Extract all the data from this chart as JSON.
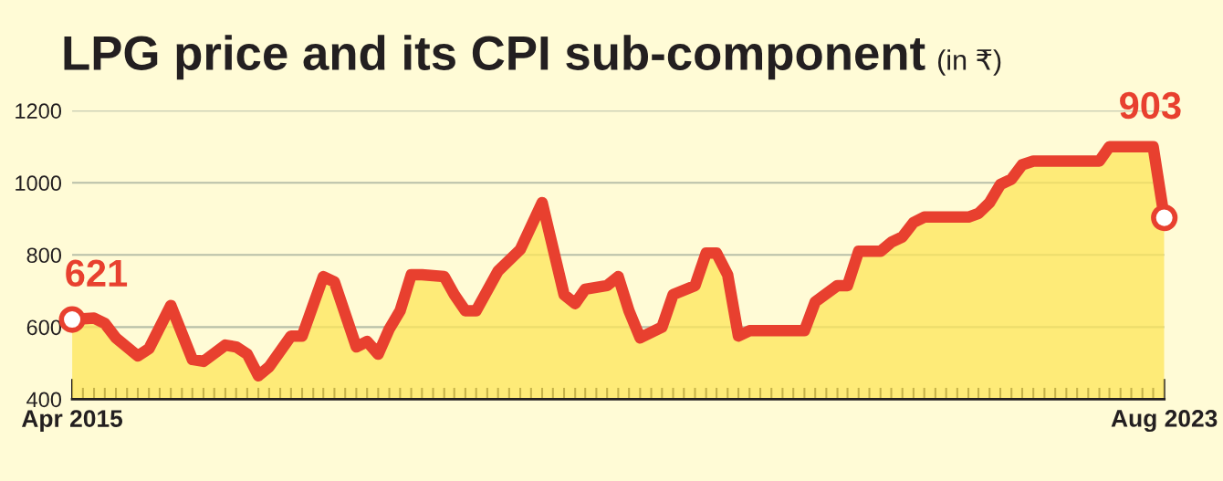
{
  "chart_data": {
    "type": "area",
    "title": "LPG price and its CPI sub-component",
    "subtitle": "(in ₹)",
    "x": [
      "2015-04",
      "2015-06",
      "2015-07",
      "2015-08",
      "2015-10",
      "2015-11",
      "2016-01",
      "2016-03",
      "2016-04",
      "2016-06",
      "2016-07",
      "2016-08",
      "2016-09",
      "2016-10",
      "2016-12",
      "2017-01",
      "2017-03",
      "2017-04",
      "2017-06",
      "2017-07",
      "2017-08",
      "2017-09",
      "2017-10",
      "2017-11",
      "2017-12",
      "2018-02",
      "2018-03",
      "2018-04",
      "2018-05",
      "2018-07",
      "2018-09",
      "2018-11",
      "2019-01",
      "2019-02",
      "2019-03",
      "2019-05",
      "2019-06",
      "2019-07",
      "2019-08",
      "2019-10",
      "2019-11",
      "2020-01",
      "2020-02",
      "2020-03",
      "2020-04",
      "2020-05",
      "2020-06",
      "2020-11",
      "2020-12",
      "2021-02",
      "2021-03",
      "2021-04",
      "2021-06",
      "2021-07",
      "2021-08",
      "2021-09",
      "2021-10",
      "2022-02",
      "2022-03",
      "2022-04",
      "2022-05",
      "2022-06",
      "2022-07",
      "2022-08",
      "2023-02",
      "2023-03",
      "2023-07",
      "2023-08"
    ],
    "series": [
      {
        "color": "#e8402f",
        "values": [
          621,
          625,
          610,
          570,
          520,
          540,
          660,
          510,
          505,
          550,
          545,
          525,
          465,
          490,
          575,
          575,
          740,
          725,
          545,
          560,
          525,
          595,
          645,
          745,
          745,
          740,
          690,
          645,
          645,
          755,
          815,
          945,
          690,
          665,
          705,
          715,
          740,
          645,
          570,
          600,
          690,
          715,
          805,
          805,
          745,
          575,
          590,
          590,
          670,
          715,
          715,
          810,
          810,
          835,
          850,
          890,
          905,
          905,
          915,
          945,
          995,
          1010,
          1050,
          1060,
          1060,
          1100,
          1100,
          903
        ]
      }
    ],
    "ylim": [
      400,
      1200
    ],
    "yticks": [
      400,
      600,
      800,
      1000,
      1200
    ],
    "xlim": [
      "2015-04",
      "2023-08"
    ],
    "xticks": [
      {
        "value": "2015-04",
        "label": "Apr 2015"
      },
      {
        "value": "2015-05",
        "label": null
      },
      {
        "value": "2015-06",
        "label": null
      },
      {
        "value": "2015-07",
        "label": null
      },
      {
        "value": "2015-08",
        "label": null
      },
      {
        "value": "2015-09",
        "label": null
      },
      {
        "value": "2015-10",
        "label": null
      },
      {
        "value": "2015-11",
        "label": null
      },
      {
        "value": "2015-12",
        "label": null
      },
      {
        "value": "2016-01",
        "label": null
      },
      {
        "value": "2016-02",
        "label": null
      },
      {
        "value": "2016-03",
        "label": null
      },
      {
        "value": "2016-04",
        "label": null
      },
      {
        "value": "2016-05",
        "label": null
      },
      {
        "value": "2016-06",
        "label": null
      },
      {
        "value": "2016-07",
        "label": null
      },
      {
        "value": "2016-08",
        "label": null
      },
      {
        "value": "2016-09",
        "label": null
      },
      {
        "value": "2016-10",
        "label": null
      },
      {
        "value": "2016-11",
        "label": null
      },
      {
        "value": "2016-12",
        "label": null
      },
      {
        "value": "2017-01",
        "label": null
      },
      {
        "value": "2017-02",
        "label": null
      },
      {
        "value": "2017-03",
        "label": null
      },
      {
        "value": "2017-04",
        "label": null
      },
      {
        "value": "2017-05",
        "label": null
      },
      {
        "value": "2017-06",
        "label": null
      },
      {
        "value": "2017-07",
        "label": null
      },
      {
        "value": "2017-08",
        "label": null
      },
      {
        "value": "2017-09",
        "label": null
      },
      {
        "value": "2017-10",
        "label": null
      },
      {
        "value": "2017-11",
        "label": null
      },
      {
        "value": "2017-12",
        "label": null
      },
      {
        "value": "2018-01",
        "label": null
      },
      {
        "value": "2018-02",
        "label": null
      },
      {
        "value": "2018-03",
        "label": null
      },
      {
        "value": "2018-04",
        "label": null
      },
      {
        "value": "2018-05",
        "label": null
      },
      {
        "value": "2018-06",
        "label": null
      },
      {
        "value": "2018-07",
        "label": null
      },
      {
        "value": "2018-08",
        "label": null
      },
      {
        "value": "2018-09",
        "label": null
      },
      {
        "value": "2018-10",
        "label": null
      },
      {
        "value": "2018-11",
        "label": null
      },
      {
        "value": "2018-12",
        "label": null
      },
      {
        "value": "2019-01",
        "label": null
      },
      {
        "value": "2019-02",
        "label": null
      },
      {
        "value": "2019-03",
        "label": null
      },
      {
        "value": "2019-04",
        "label": null
      },
      {
        "value": "2019-05",
        "label": null
      },
      {
        "value": "2019-06",
        "label": null
      },
      {
        "value": "2019-07",
        "label": null
      },
      {
        "value": "2019-08",
        "label": null
      },
      {
        "value": "2019-09",
        "label": null
      },
      {
        "value": "2019-10",
        "label": null
      },
      {
        "value": "2019-11",
        "label": null
      },
      {
        "value": "2019-12",
        "label": null
      },
      {
        "value": "2020-01",
        "label": null
      },
      {
        "value": "2020-02",
        "label": null
      },
      {
        "value": "2020-03",
        "label": null
      },
      {
        "value": "2020-04",
        "label": null
      },
      {
        "value": "2020-05",
        "label": null
      },
      {
        "value": "2020-06",
        "label": null
      },
      {
        "value": "2020-07",
        "label": null
      },
      {
        "value": "2020-08",
        "label": null
      },
      {
        "value": "2020-09",
        "label": null
      },
      {
        "value": "2020-10",
        "label": null
      },
      {
        "value": "2020-11",
        "label": null
      },
      {
        "value": "2020-12",
        "label": null
      },
      {
        "value": "2021-01",
        "label": null
      },
      {
        "value": "2021-02",
        "label": null
      },
      {
        "value": "2021-03",
        "label": null
      },
      {
        "value": "2021-04",
        "label": null
      },
      {
        "value": "2021-05",
        "label": null
      },
      {
        "value": "2021-06",
        "label": null
      },
      {
        "value": "2021-07",
        "label": null
      },
      {
        "value": "2021-08",
        "label": null
      },
      {
        "value": "2021-09",
        "label": null
      },
      {
        "value": "2021-10",
        "label": null
      },
      {
        "value": "2021-11",
        "label": null
      },
      {
        "value": "2021-12",
        "label": null
      },
      {
        "value": "2022-01",
        "label": null
      },
      {
        "value": "2022-02",
        "label": null
      },
      {
        "value": "2022-03",
        "label": null
      },
      {
        "value": "2022-04",
        "label": null
      },
      {
        "value": "2022-05",
        "label": null
      },
      {
        "value": "2022-06",
        "label": null
      },
      {
        "value": "2022-07",
        "label": null
      },
      {
        "value": "2022-08",
        "label": null
      },
      {
        "value": "2022-09",
        "label": null
      },
      {
        "value": "2022-10",
        "label": null
      },
      {
        "value": "2022-11",
        "label": null
      },
      {
        "value": "2022-12",
        "label": null
      },
      {
        "value": "2023-01",
        "label": null
      },
      {
        "value": "2023-02",
        "label": null
      },
      {
        "value": "2023-03",
        "label": null
      },
      {
        "value": "2023-04",
        "label": null
      },
      {
        "value": "2023-05",
        "label": null
      },
      {
        "value": "2023-06",
        "label": null
      },
      {
        "value": "2023-07",
        "label": null
      },
      {
        "value": "2023-08",
        "label": "Aug 2023"
      }
    ],
    "annotations": [
      {
        "text": "621",
        "x": "2015-04",
        "y": 621
      },
      {
        "text": "903",
        "x": "2023-08",
        "y": 903
      }
    ],
    "grid": "y",
    "line_style": "solid"
  }
}
